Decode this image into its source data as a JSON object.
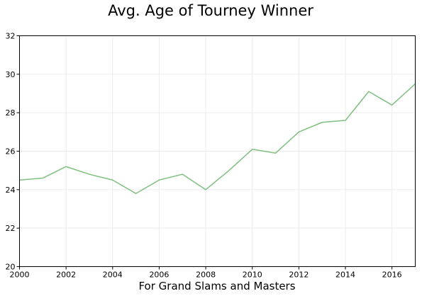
{
  "chart_data": {
    "type": "line",
    "title": "Avg. Age of Tourney Winner",
    "xlabel": "For Grand Slams and Masters",
    "ylabel": "",
    "x": [
      2000,
      2001,
      2002,
      2003,
      2004,
      2005,
      2006,
      2007,
      2008,
      2009,
      2010,
      2011,
      2012,
      2013,
      2014,
      2015,
      2016,
      2017
    ],
    "series": [
      {
        "values": [
          24.5,
          24.6,
          25.2,
          24.8,
          24.5,
          23.8,
          24.5,
          24.8,
          24.0,
          25.0,
          26.1,
          25.9,
          27.0,
          27.5,
          27.6,
          29.1,
          28.4,
          29.5
        ],
        "color": "#7fbf7f"
      }
    ],
    "xlim": [
      2000,
      2017
    ],
    "ylim": [
      20,
      32
    ],
    "xticks": [
      2000,
      2002,
      2004,
      2006,
      2008,
      2010,
      2012,
      2014,
      2016
    ],
    "yticks": [
      20,
      22,
      24,
      26,
      28,
      30,
      32
    ],
    "grid": true,
    "legend": "none"
  }
}
